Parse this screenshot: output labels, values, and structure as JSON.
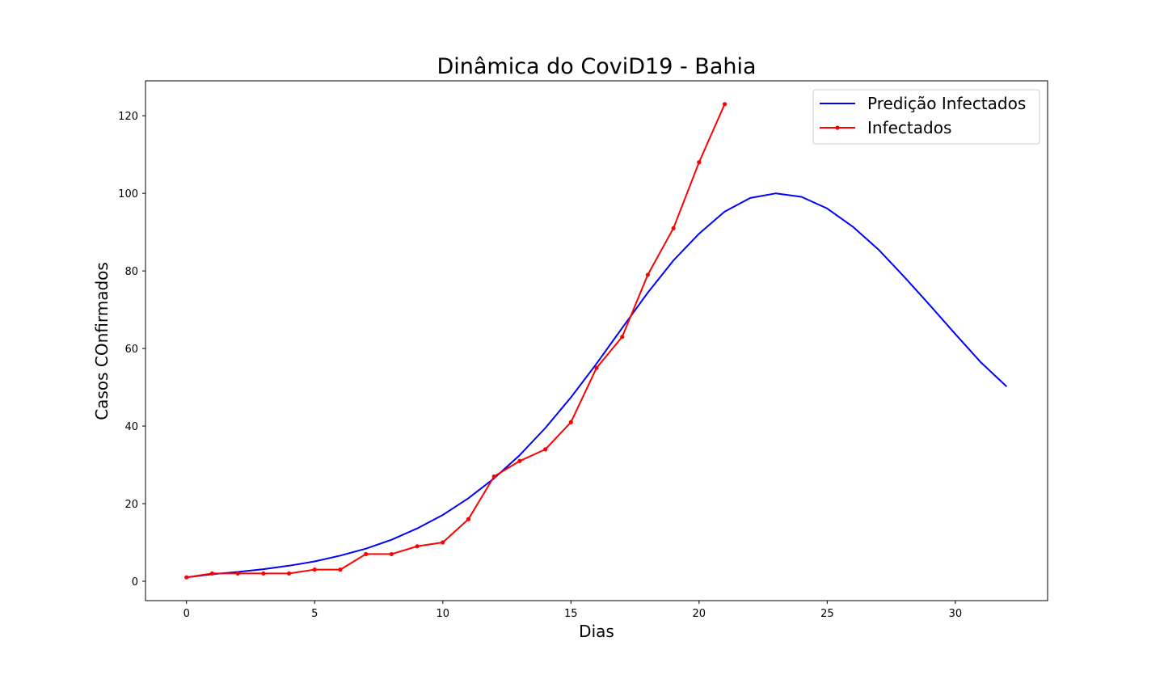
{
  "chart_data": {
    "type": "line",
    "title": "Dinâmica do CoviD19 - Bahia",
    "xlabel": "Dias",
    "ylabel": "Casos COnfirmados",
    "xlim": [
      -1.6,
      33.6
    ],
    "ylim": [
      -5,
      129
    ],
    "xticks": [
      0,
      5,
      10,
      15,
      20,
      25,
      30
    ],
    "yticks": [
      0,
      20,
      40,
      60,
      80,
      100,
      120
    ],
    "grid": false,
    "legend_position": "top-right",
    "series": [
      {
        "name": "Predição Infectados",
        "color": "#0000ff",
        "marker": "none",
        "x": [
          0,
          1,
          2,
          3,
          4,
          5,
          6,
          7,
          8,
          9,
          10,
          11,
          12,
          13,
          14,
          15,
          16,
          17,
          18,
          19,
          20,
          21,
          22,
          23,
          24,
          25,
          26,
          27,
          28,
          29,
          30,
          31,
          32
        ],
        "values": [
          1.0,
          1.8,
          2.4,
          3.1,
          4.0,
          5.1,
          6.6,
          8.4,
          10.7,
          13.6,
          17.1,
          21.4,
          26.5,
          32.5,
          39.5,
          47.4,
          56.1,
          65.3,
          74.4,
          82.7,
          89.6,
          95.3,
          98.8,
          100.0,
          99.1,
          96.1,
          91.4,
          85.5,
          78.5,
          71.2,
          63.7,
          56.4,
          50.2
        ]
      },
      {
        "name": "Infectados",
        "color": "#ff0000",
        "marker": "circle",
        "x": [
          0,
          1,
          2,
          3,
          4,
          5,
          6,
          7,
          8,
          9,
          10,
          11,
          12,
          13,
          14,
          15,
          16,
          17,
          18,
          19,
          20,
          21
        ],
        "values": [
          1,
          2,
          2,
          2,
          2,
          3,
          3,
          7,
          7,
          9,
          10,
          16,
          27,
          31,
          34,
          41,
          55,
          63,
          79,
          91,
          108,
          123
        ]
      }
    ]
  }
}
